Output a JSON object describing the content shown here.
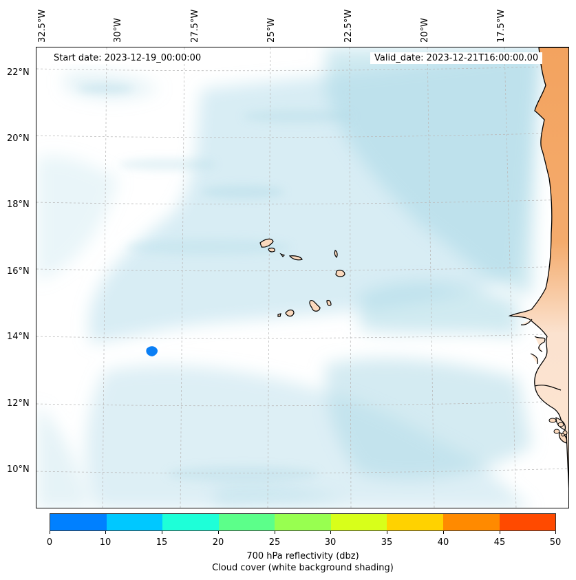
{
  "map": {
    "start_date": "Start date: 2023-12-19_00:00:00",
    "valid_date": "Valid_date: 2023-12-21T16:00:00.00",
    "lon_labels": [
      "32.5°W",
      "30°W",
      "27.5°W",
      "25°W",
      "22.5°W",
      "20°W",
      "17.5°W"
    ],
    "lat_labels": [
      "22°N",
      "20°N",
      "18°N",
      "16°N",
      "14°N",
      "12°N",
      "10°N"
    ],
    "colors": {
      "cloud": "#a9d8e6",
      "land_dry": "#f3a35f",
      "land_light": "#fbd9bd",
      "reflectivity_echo": "#0a7ff5",
      "coastline": "#000000",
      "grid": "#bbbbbb"
    }
  },
  "colorbar": {
    "ticks": [
      "0",
      "10",
      "15",
      "20",
      "25",
      "30",
      "35",
      "40",
      "45",
      "50"
    ],
    "colors": [
      "#0080ff",
      "#00c8ff",
      "#1effd8",
      "#5cff8a",
      "#98ff50",
      "#d8ff1a",
      "#ffd200",
      "#ff8a00",
      "#ff4a00"
    ],
    "label_line1": "700 hPa reflectivity (dbz)",
    "label_line2": "Cloud cover (white background shading)"
  }
}
